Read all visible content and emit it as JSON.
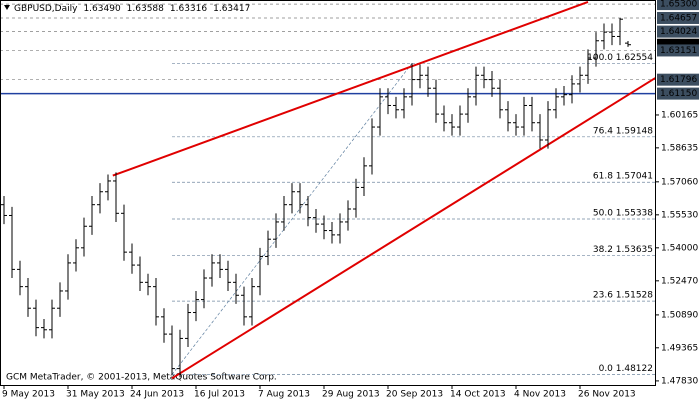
{
  "chart_data": {
    "type": "ohlc",
    "symbol": "GBPUSD,Daily",
    "header_values": [
      "1.63490",
      "1.63588",
      "1.63316",
      "1.63417"
    ],
    "watermark": "GCM MetaTrader, © 2001-2013, MetaQuotes Software Corp.",
    "color": "#000000",
    "categories": [
      "9 May 2013",
      null,
      null,
      null,
      null,
      null,
      null,
      null,
      "31 May 2013",
      null,
      null,
      null,
      null,
      null,
      null,
      null,
      "24 Jun 2013",
      null,
      null,
      null,
      null,
      null,
      null,
      null,
      "16 Jul 2013",
      null,
      null,
      null,
      null,
      null,
      null,
      null,
      "7 Aug 2013",
      null,
      null,
      null,
      null,
      null,
      null,
      null,
      "29 Aug 2013",
      null,
      null,
      null,
      null,
      null,
      null,
      null,
      "20 Sep 2013",
      null,
      null,
      null,
      null,
      null,
      null,
      null,
      "14 Oct 2013",
      null,
      null,
      null,
      null,
      null,
      null,
      null,
      "4 Nov 2013",
      null,
      null,
      null,
      null,
      null,
      null,
      null,
      "26 Nov 2013",
      null,
      null,
      null,
      null,
      null,
      null
    ],
    "open": [
      1.56,
      1.555,
      1.53,
      1.522,
      1.512,
      1.503,
      1.502,
      1.512,
      1.52,
      1.533,
      1.54,
      1.55,
      1.56,
      1.566,
      1.571,
      1.556,
      1.538,
      1.532,
      1.524,
      1.522,
      1.508,
      1.5,
      1.484,
      1.498,
      1.51,
      1.516,
      1.526,
      1.533,
      1.53,
      1.524,
      1.518,
      1.508,
      1.522,
      1.536,
      1.544,
      1.552,
      1.56,
      1.566,
      1.56,
      1.554,
      1.551,
      1.548,
      1.546,
      1.552,
      1.558,
      1.568,
      1.578,
      1.596,
      1.61,
      1.606,
      1.604,
      1.61,
      1.618,
      1.62,
      1.614,
      1.602,
      1.598,
      1.596,
      1.602,
      1.61,
      1.62,
      1.618,
      1.614,
      1.604,
      1.598,
      1.596,
      1.606,
      1.598,
      1.59,
      1.604,
      1.61,
      1.611,
      1.616,
      1.62,
      1.628,
      1.636,
      1.64,
      1.638,
      1.6349
    ],
    "high": [
      1.564,
      1.559,
      1.534,
      1.526,
      1.516,
      1.507,
      1.516,
      1.524,
      1.537,
      1.544,
      1.554,
      1.564,
      1.57,
      1.574,
      1.575,
      1.56,
      1.542,
      1.536,
      1.528,
      1.526,
      1.512,
      1.504,
      1.502,
      1.514,
      1.52,
      1.53,
      1.537,
      1.537,
      1.534,
      1.528,
      1.522,
      1.526,
      1.54,
      1.548,
      1.556,
      1.564,
      1.57,
      1.57,
      1.564,
      1.558,
      1.555,
      1.552,
      1.556,
      1.562,
      1.572,
      1.582,
      1.6,
      1.614,
      1.614,
      1.61,
      1.614,
      1.62554,
      1.625,
      1.624,
      1.618,
      1.606,
      1.602,
      1.606,
      1.614,
      1.624,
      1.624,
      1.622,
      1.618,
      1.608,
      1.602,
      1.61,
      1.61,
      1.602,
      1.608,
      1.614,
      1.615,
      1.62,
      1.624,
      1.632,
      1.64,
      1.644,
      1.644,
      1.64657,
      1.63588
    ],
    "low": [
      1.551,
      1.526,
      1.518,
      1.508,
      1.499,
      1.498,
      1.498,
      1.508,
      1.516,
      1.529,
      1.536,
      1.546,
      1.556,
      1.562,
      1.552,
      1.534,
      1.528,
      1.52,
      1.518,
      1.504,
      1.496,
      1.48122,
      1.48,
      1.494,
      1.506,
      1.512,
      1.522,
      1.526,
      1.52,
      1.514,
      1.504,
      1.504,
      1.518,
      1.532,
      1.54,
      1.548,
      1.556,
      1.556,
      1.55,
      1.547,
      1.544,
      1.542,
      1.542,
      1.548,
      1.554,
      1.564,
      1.574,
      1.592,
      1.602,
      1.6,
      1.6,
      1.606,
      1.614,
      1.61,
      1.598,
      1.594,
      1.592,
      1.592,
      1.598,
      1.606,
      1.614,
      1.61,
      1.6,
      1.594,
      1.592,
      1.592,
      1.594,
      1.586,
      1.586,
      1.6,
      1.606,
      1.607,
      1.612,
      1.616,
      1.624,
      1.632,
      1.634,
      1.634,
      1.63316
    ],
    "close": [
      1.555,
      1.53,
      1.522,
      1.512,
      1.503,
      1.502,
      1.512,
      1.52,
      1.533,
      1.54,
      1.55,
      1.56,
      1.566,
      1.571,
      1.556,
      1.538,
      1.532,
      1.524,
      1.522,
      1.508,
      1.5,
      1.484,
      1.498,
      1.51,
      1.516,
      1.526,
      1.533,
      1.53,
      1.524,
      1.518,
      1.508,
      1.522,
      1.536,
      1.544,
      1.552,
      1.56,
      1.566,
      1.56,
      1.554,
      1.551,
      1.548,
      1.546,
      1.552,
      1.558,
      1.568,
      1.578,
      1.596,
      1.61,
      1.606,
      1.604,
      1.61,
      1.618,
      1.62,
      1.614,
      1.602,
      1.598,
      1.596,
      1.602,
      1.61,
      1.62,
      1.618,
      1.614,
      1.604,
      1.598,
      1.596,
      1.606,
      1.598,
      1.59,
      1.604,
      1.61,
      1.611,
      1.616,
      1.62,
      1.628,
      1.636,
      1.64,
      1.638,
      1.646,
      1.63417
    ],
    "ylim": [
      1.4764,
      1.6549
    ],
    "yticks": [
      {
        "value": 1.6016,
        "label": "1.60165"
      },
      {
        "value": 1.58635,
        "label": "1.58635"
      },
      {
        "value": 1.5706,
        "label": "1.57060"
      },
      {
        "value": 1.5553,
        "label": "1.55530"
      },
      {
        "value": 1.54,
        "label": "1.54000"
      },
      {
        "value": 1.5247,
        "label": "1.52470"
      },
      {
        "value": 1.5089,
        "label": "1.50890"
      },
      {
        "value": 1.49365,
        "label": "1.49365"
      },
      {
        "value": 1.4783,
        "label": "1.47830"
      }
    ],
    "levels": [
      {
        "value": 1.653,
        "label": "1.65300",
        "style": "dotted"
      },
      {
        "value": 1.64657,
        "label": "1.64657",
        "style": "dotted"
      },
      {
        "value": 1.64024,
        "label": "1.64024",
        "style": "dotted"
      },
      {
        "value": 1.63417,
        "label": "1.63417",
        "style": "current"
      },
      {
        "value": 1.63151,
        "label": "1.63151",
        "style": "dotted"
      },
      {
        "value": 1.61796,
        "label": "1.61796",
        "style": "dotted"
      },
      {
        "value": 1.6115,
        "label": "1.61150",
        "style": "blue"
      }
    ],
    "fib_start": 21,
    "fib_levels": [
      {
        "value": 1.48122,
        "label": "0.0 1.48122"
      },
      {
        "value": 1.51528,
        "label": "23.6 1.51528"
      },
      {
        "value": 1.53635,
        "label": "38.2 1.53635"
      },
      {
        "value": 1.55338,
        "label": "50.0 1.55338"
      },
      {
        "value": 1.57041,
        "label": "61.8 1.57041"
      },
      {
        "value": 1.59148,
        "label": "76.4 1.59148"
      },
      {
        "value": 1.62554,
        "label": "100.0 1.62554"
      }
    ],
    "fib_diagonal": {
      "x": [
        21,
        51
      ],
      "y": [
        1.48122,
        1.62554
      ],
      "color": "#6080a0"
    },
    "trendlines": [
      {
        "color": "#e00000",
        "x": [
          13.6,
          73
        ],
        "y": [
          1.5735,
          1.654
        ]
      },
      {
        "color": "#e00000",
        "x": [
          21,
          81.4
        ],
        "y": [
          1.4795,
          1.6187
        ]
      }
    ]
  }
}
